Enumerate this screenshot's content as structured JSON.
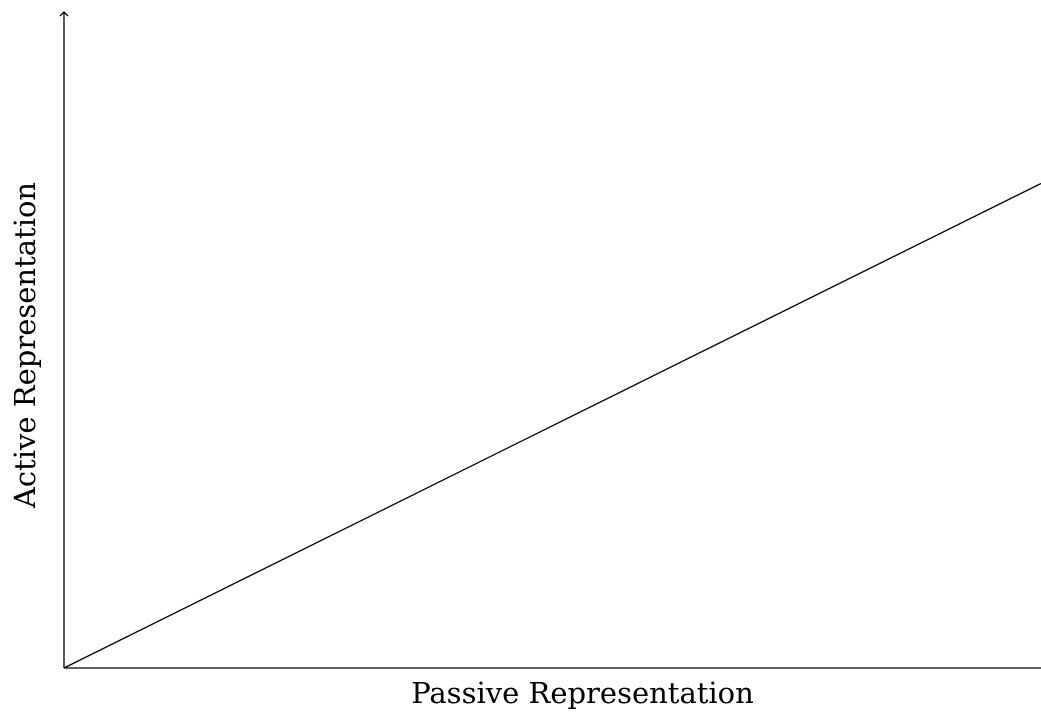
{
  "chart_data": {
    "type": "line",
    "title": "",
    "xlabel": "Passive Representation",
    "ylabel": "Active Representation",
    "xlim": [
      0,
      1
    ],
    "ylim": [
      0,
      1
    ],
    "grid": false,
    "legend": "none",
    "series": [
      {
        "x": [
          0,
          1
        ],
        "y": [
          0,
          0.75
        ]
      }
    ],
    "colors": {
      "line": "#000000",
      "axis": "#000000",
      "background": "#ffffff"
    }
  }
}
